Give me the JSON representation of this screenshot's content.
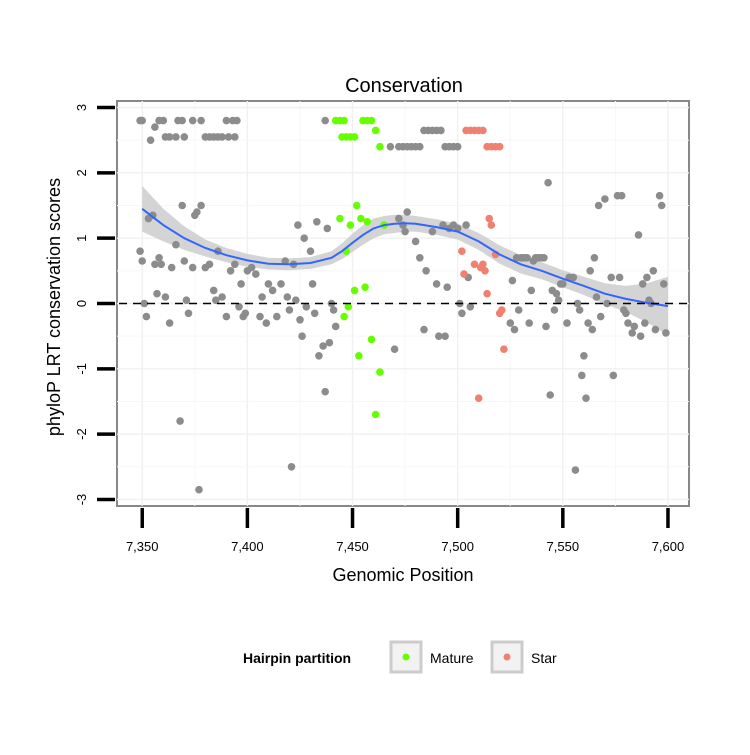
{
  "chart_data": {
    "type": "scatter",
    "title": "Conservation",
    "xlabel": "Genomic Position",
    "ylabel": "phyloP LRT conservation scores",
    "xlim": [
      7338,
      7610
    ],
    "ylim": [
      -3.1,
      3.1
    ],
    "x_ticks": [
      7350,
      7400,
      7450,
      7500,
      7550,
      7600
    ],
    "x_tick_labels": [
      "7,350",
      "7,400",
      "7,450",
      "7,500",
      "7,550",
      "7,600"
    ],
    "y_ticks": [
      -3,
      -2,
      -1,
      0,
      1,
      2,
      3
    ],
    "y_tick_labels": [
      "-3",
      "-2",
      "-1",
      "0",
      "1",
      "2",
      "3"
    ],
    "reference_line": {
      "y": 0,
      "style": "dashed"
    },
    "colors": {
      "Other": "#8c8c8c",
      "Mature": "#66ff00",
      "Star": "#f08070",
      "smooth": "#3366ff",
      "ribbon": "#cccccc"
    },
    "legend": {
      "title": "Hairpin partition",
      "entries": [
        {
          "label": "Mature",
          "color": "#66ff00"
        },
        {
          "label": "Star",
          "color": "#f08070"
        }
      ],
      "position": "bottom"
    },
    "series": [
      {
        "name": "Other",
        "points": [
          [
            7349,
            2.8
          ],
          [
            7350,
            2.8
          ],
          [
            7354,
            2.5
          ],
          [
            7356,
            2.7
          ],
          [
            7358,
            2.8
          ],
          [
            7360,
            2.8
          ],
          [
            7361,
            2.55
          ],
          [
            7363,
            2.55
          ],
          [
            7366,
            2.55
          ],
          [
            7367,
            2.8
          ],
          [
            7369,
            2.8
          ],
          [
            7370,
            2.55
          ],
          [
            7374,
            2.8
          ],
          [
            7378,
            2.8
          ],
          [
            7380,
            2.55
          ],
          [
            7382,
            2.55
          ],
          [
            7384,
            2.55
          ],
          [
            7386,
            2.55
          ],
          [
            7388,
            2.55
          ],
          [
            7390,
            2.8
          ],
          [
            7391,
            2.55
          ],
          [
            7393,
            2.8
          ],
          [
            7394,
            2.55
          ],
          [
            7395,
            2.8
          ],
          [
            7349,
            0.8
          ],
          [
            7350,
            0.65
          ],
          [
            7351,
            0
          ],
          [
            7352,
            -0.2
          ],
          [
            7353,
            1.3
          ],
          [
            7355,
            1.35
          ],
          [
            7356,
            0.6
          ],
          [
            7357,
            0.15
          ],
          [
            7358,
            0.7
          ],
          [
            7359,
            0.6
          ],
          [
            7361,
            0.1
          ],
          [
            7363,
            -0.3
          ],
          [
            7364,
            0.55
          ],
          [
            7366,
            0.9
          ],
          [
            7368,
            -1.8
          ],
          [
            7369,
            1.5
          ],
          [
            7370,
            0.65
          ],
          [
            7371,
            0.05
          ],
          [
            7372,
            -0.15
          ],
          [
            7374,
            0.55
          ],
          [
            7375,
            1.35
          ],
          [
            7376,
            1.4
          ],
          [
            7377,
            -2.85
          ],
          [
            7378,
            1.5
          ],
          [
            7380,
            0.55
          ],
          [
            7382,
            0.6
          ],
          [
            7384,
            0.2
          ],
          [
            7385,
            0.05
          ],
          [
            7386,
            0.8
          ],
          [
            7388,
            0.1
          ],
          [
            7390,
            -0.2
          ],
          [
            7392,
            0.5
          ],
          [
            7394,
            0.6
          ],
          [
            7396,
            -0.05
          ],
          [
            7397,
            0.3
          ],
          [
            7398,
            -0.2
          ],
          [
            7399,
            -0.15
          ],
          [
            7400,
            0.5
          ],
          [
            7402,
            0.55
          ],
          [
            7404,
            0.45
          ],
          [
            7406,
            -0.2
          ],
          [
            7407,
            0.1
          ],
          [
            7409,
            -0.3
          ],
          [
            7410,
            0.3
          ],
          [
            7412,
            0.2
          ],
          [
            7414,
            -0.2
          ],
          [
            7416,
            0.3
          ],
          [
            7418,
            0.65
          ],
          [
            7419,
            0.1
          ],
          [
            7420,
            -0.1
          ],
          [
            7421,
            -2.5
          ],
          [
            7422,
            0.6
          ],
          [
            7423,
            0.05
          ],
          [
            7424,
            1.2
          ],
          [
            7425,
            -0.25
          ],
          [
            7426,
            -0.5
          ],
          [
            7427,
            1
          ],
          [
            7428,
            -0.05
          ],
          [
            7430,
            0.8
          ],
          [
            7431,
            0.3
          ],
          [
            7432,
            -0.15
          ],
          [
            7433,
            1.25
          ],
          [
            7434,
            -0.8
          ],
          [
            7436,
            -0.65
          ],
          [
            7437,
            -1.35
          ],
          [
            7438,
            1.15
          ],
          [
            7439,
            -0.6
          ],
          [
            7440,
            0
          ],
          [
            7441,
            -0.1
          ],
          [
            7442,
            -0.35
          ],
          [
            7437,
            2.8
          ],
          [
            7468,
            2.4
          ],
          [
            7472,
            2.4
          ],
          [
            7474,
            2.4
          ],
          [
            7476,
            2.4
          ],
          [
            7478,
            2.4
          ],
          [
            7480,
            2.4
          ],
          [
            7482,
            2.4
          ],
          [
            7484,
            2.65
          ],
          [
            7486,
            2.65
          ],
          [
            7488,
            2.65
          ],
          [
            7490,
            2.65
          ],
          [
            7492,
            2.65
          ],
          [
            7494,
            2.4
          ],
          [
            7496,
            2.4
          ],
          [
            7498,
            2.4
          ],
          [
            7500,
            2.4
          ],
          [
            7470,
            -0.7
          ],
          [
            7472,
            1.3
          ],
          [
            7474,
            1.2
          ],
          [
            7475,
            1.1
          ],
          [
            7476,
            1.4
          ],
          [
            7480,
            0.95
          ],
          [
            7482,
            0.7
          ],
          [
            7484,
            -0.4
          ],
          [
            7485,
            0.5
          ],
          [
            7488,
            1.1
          ],
          [
            7490,
            0.3
          ],
          [
            7491,
            -0.5
          ],
          [
            7493,
            1.2
          ],
          [
            7494,
            -0.5
          ],
          [
            7495,
            0.25
          ],
          [
            7496,
            1.15
          ],
          [
            7498,
            1.2
          ],
          [
            7500,
            1.15
          ],
          [
            7501,
            0
          ],
          [
            7502,
            -0.15
          ],
          [
            7504,
            1.2
          ],
          [
            7505,
            0.4
          ],
          [
            7506,
            -0.05
          ],
          [
            7525,
            -0.3
          ],
          [
            7526,
            0.35
          ],
          [
            7527,
            -0.4
          ],
          [
            7528,
            0.7
          ],
          [
            7529,
            -0.1
          ],
          [
            7530,
            0.7
          ],
          [
            7531,
            0.7
          ],
          [
            7532,
            0.7
          ],
          [
            7533,
            0.7
          ],
          [
            7534,
            -0.3
          ],
          [
            7535,
            0.2
          ],
          [
            7536,
            0.65
          ],
          [
            7537,
            0.7
          ],
          [
            7538,
            0.7
          ],
          [
            7539,
            0.7
          ],
          [
            7540,
            0.7
          ],
          [
            7541,
            0.7
          ],
          [
            7542,
            -0.35
          ],
          [
            7543,
            1.85
          ],
          [
            7544,
            -1.4
          ],
          [
            7545,
            0.2
          ],
          [
            7546,
            -0.1
          ],
          [
            7547,
            0.15
          ],
          [
            7548,
            0.05
          ],
          [
            7549,
            0.3
          ],
          [
            7550,
            0.3
          ],
          [
            7552,
            -0.3
          ],
          [
            7553,
            0.4
          ],
          [
            7555,
            0.4
          ],
          [
            7556,
            -2.55
          ],
          [
            7557,
            0
          ],
          [
            7558,
            -0.1
          ],
          [
            7559,
            -1.1
          ],
          [
            7560,
            -0.8
          ],
          [
            7561,
            -1.45
          ],
          [
            7562,
            -0.3
          ],
          [
            7563,
            0.5
          ],
          [
            7564,
            -0.4
          ],
          [
            7565,
            0.7
          ],
          [
            7566,
            0.1
          ],
          [
            7567,
            1.5
          ],
          [
            7568,
            -0.2
          ],
          [
            7570,
            1.6
          ],
          [
            7571,
            0
          ],
          [
            7573,
            0.4
          ],
          [
            7574,
            -1.1
          ],
          [
            7576,
            1.65
          ],
          [
            7577,
            0.4
          ],
          [
            7578,
            1.65
          ],
          [
            7579,
            -0.1
          ],
          [
            7580,
            -0.15
          ],
          [
            7581,
            -0.3
          ],
          [
            7583,
            -0.45
          ],
          [
            7584,
            -0.35
          ],
          [
            7586,
            1.05
          ],
          [
            7587,
            -0.5
          ],
          [
            7588,
            0.3
          ],
          [
            7589,
            -0.3
          ],
          [
            7590,
            0.4
          ],
          [
            7591,
            0.05
          ],
          [
            7592,
            0
          ],
          [
            7593,
            0.5
          ],
          [
            7594,
            -0.4
          ],
          [
            7596,
            1.65
          ],
          [
            7597,
            1.5
          ],
          [
            7598,
            0.3
          ],
          [
            7599,
            -0.45
          ]
        ]
      },
      {
        "name": "Mature",
        "points": [
          [
            7442,
            2.8
          ],
          [
            7444,
            2.8
          ],
          [
            7445,
            2.55
          ],
          [
            7446,
            2.8
          ],
          [
            7447,
            2.55
          ],
          [
            7449,
            2.55
          ],
          [
            7451,
            2.55
          ],
          [
            7455,
            2.8
          ],
          [
            7457,
            2.8
          ],
          [
            7459,
            2.8
          ],
          [
            7461,
            2.65
          ],
          [
            7463,
            2.4
          ],
          [
            7444,
            1.3
          ],
          [
            7446,
            -0.2
          ],
          [
            7447,
            0.8
          ],
          [
            7448,
            -0.05
          ],
          [
            7449,
            1.2
          ],
          [
            7451,
            0.2
          ],
          [
            7452,
            1.5
          ],
          [
            7453,
            -0.8
          ],
          [
            7454,
            1.3
          ],
          [
            7456,
            0.25
          ],
          [
            7457,
            1.25
          ],
          [
            7459,
            -0.55
          ],
          [
            7461,
            -1.7
          ],
          [
            7463,
            -1.05
          ],
          [
            7465,
            1.2
          ]
        ]
      },
      {
        "name": "Star",
        "points": [
          [
            7504,
            2.65
          ],
          [
            7506,
            2.65
          ],
          [
            7508,
            2.65
          ],
          [
            7510,
            2.65
          ],
          [
            7512,
            2.65
          ],
          [
            7514,
            2.4
          ],
          [
            7516,
            2.4
          ],
          [
            7518,
            2.4
          ],
          [
            7520,
            2.4
          ],
          [
            7502,
            0.8
          ],
          [
            7503,
            0.45
          ],
          [
            7508,
            0.6
          ],
          [
            7510,
            -1.45
          ],
          [
            7511,
            0.55
          ],
          [
            7512,
            0.6
          ],
          [
            7513,
            0.5
          ],
          [
            7514,
            0.15
          ],
          [
            7515,
            1.3
          ],
          [
            7516,
            1.2
          ],
          [
            7518,
            0.75
          ],
          [
            7520,
            -0.15
          ],
          [
            7521,
            -0.1
          ],
          [
            7522,
            -0.7
          ]
        ]
      }
    ],
    "smooth": {
      "x": [
        7350,
        7360,
        7370,
        7380,
        7390,
        7400,
        7410,
        7420,
        7430,
        7440,
        7445,
        7450,
        7455,
        7460,
        7465,
        7470,
        7475,
        7480,
        7490,
        7500,
        7510,
        7520,
        7530,
        7540,
        7550,
        7560,
        7570,
        7580,
        7590,
        7600
      ],
      "y": [
        1.45,
        1.2,
        1.0,
        0.85,
        0.74,
        0.66,
        0.61,
        0.6,
        0.62,
        0.7,
        0.8,
        0.93,
        1.05,
        1.15,
        1.2,
        1.22,
        1.23,
        1.22,
        1.17,
        1.1,
        0.95,
        0.75,
        0.6,
        0.5,
        0.38,
        0.27,
        0.15,
        0.07,
        0.01,
        -0.04
      ],
      "se": [
        0.35,
        0.25,
        0.18,
        0.13,
        0.11,
        0.1,
        0.09,
        0.09,
        0.09,
        0.1,
        0.12,
        0.14,
        0.15,
        0.15,
        0.14,
        0.14,
        0.13,
        0.12,
        0.12,
        0.12,
        0.13,
        0.14,
        0.14,
        0.13,
        0.13,
        0.14,
        0.16,
        0.2,
        0.3,
        0.45
      ]
    }
  }
}
